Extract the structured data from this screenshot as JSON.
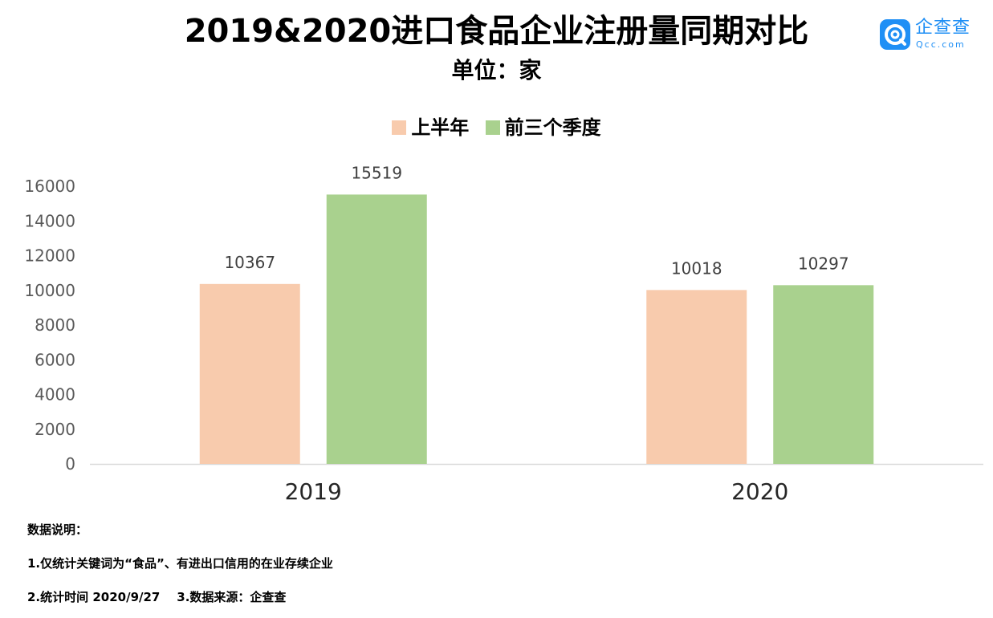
{
  "header": {
    "title": "2019&2020进口食品企业注册量同期对比",
    "subtitle": "单位：家"
  },
  "logo": {
    "name": "企查查",
    "domain": "Qcc.com",
    "icon": "qcc-logo-icon",
    "color": "#1f8ff5"
  },
  "chart_data": {
    "type": "bar",
    "categories": [
      "2019",
      "2020"
    ],
    "series": [
      {
        "name": "上半年",
        "values": [
          10367,
          10018
        ],
        "color": "#f8cbad"
      },
      {
        "name": "前三个季度",
        "values": [
          15519,
          10297
        ],
        "color": "#a9d18e"
      }
    ],
    "yticks": [
      0,
      2000,
      4000,
      6000,
      8000,
      10000,
      12000,
      14000,
      16000
    ],
    "ylim": [
      0,
      16000
    ],
    "xlabel": "",
    "ylabel": "",
    "legend": "top-center",
    "grid": false
  },
  "notes": {
    "heading": "数据说明：",
    "line1": "1.仅统计关键词为“食品”、有进出口信用的在业存续企业",
    "line2": "2.统计时间 2020/9/27    3.数据来源：企查查"
  }
}
